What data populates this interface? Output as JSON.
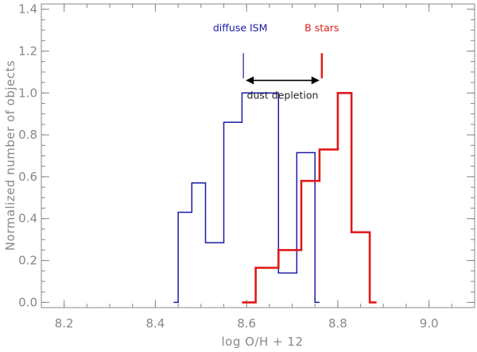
{
  "chart_data": {
    "type": "histogram",
    "xlabel": "log O/H + 12",
    "ylabel": "Normalized number of objects",
    "xlim": [
      8.15,
      9.1
    ],
    "ylim": [
      -0.025,
      1.425
    ],
    "xticks": [
      "8.2",
      "8.4",
      "8.6",
      "8.8",
      "9.0"
    ],
    "yticks": [
      "0.0",
      "0.2",
      "0.4",
      "0.6",
      "0.8",
      "1.0",
      "1.2",
      "1.4"
    ],
    "grid": false,
    "legend": "none",
    "series": [
      {
        "color": "#1a1aa8",
        "bins": [
          {
            "x0": 8.44,
            "x1": 8.45,
            "y": 0.0
          },
          {
            "x0": 8.45,
            "x1": 8.48,
            "y": 0.43
          },
          {
            "x0": 8.48,
            "x1": 8.51,
            "y": 0.57
          },
          {
            "x0": 8.51,
            "x1": 8.55,
            "y": 0.285
          },
          {
            "x0": 8.55,
            "x1": 8.59,
            "y": 0.86
          },
          {
            "x0": 8.59,
            "x1": 8.67,
            "y": 1.0
          },
          {
            "x0": 8.67,
            "x1": 8.71,
            "y": 0.14
          },
          {
            "x0": 8.71,
            "x1": 8.75,
            "y": 0.715
          },
          {
            "x0": 8.75,
            "x1": 8.76,
            "y": 0.0
          }
        ]
      },
      {
        "color": "#e01a1a",
        "bins": [
          {
            "x0": 8.59,
            "x1": 8.62,
            "y": 0.0
          },
          {
            "x0": 8.62,
            "x1": 8.67,
            "y": 0.165
          },
          {
            "x0": 8.67,
            "x1": 8.72,
            "y": 0.25
          },
          {
            "x0": 8.72,
            "x1": 8.76,
            "y": 0.58
          },
          {
            "x0": 8.76,
            "x1": 8.8,
            "y": 0.73
          },
          {
            "x0": 8.8,
            "x1": 8.83,
            "y": 1.0
          },
          {
            "x0": 8.83,
            "x1": 8.87,
            "y": 0.335
          },
          {
            "x0": 8.87,
            "x1": 8.885,
            "y": 0.0
          }
        ]
      }
    ],
    "annotations": {
      "diffuse": {
        "text": "diffuse ISM",
        "color": "#1a1aa8",
        "x": 8.593,
        "y_low": 1.07,
        "y_high": 1.19
      },
      "bstars": {
        "text": "B stars",
        "color": "#e01a1a",
        "x": 8.765,
        "y_low": 1.07,
        "y_high": 1.19
      },
      "dust": {
        "text": "dust depletion",
        "color": "#000000",
        "x0": 8.593,
        "x1": 8.765,
        "y": 1.06
      }
    }
  }
}
